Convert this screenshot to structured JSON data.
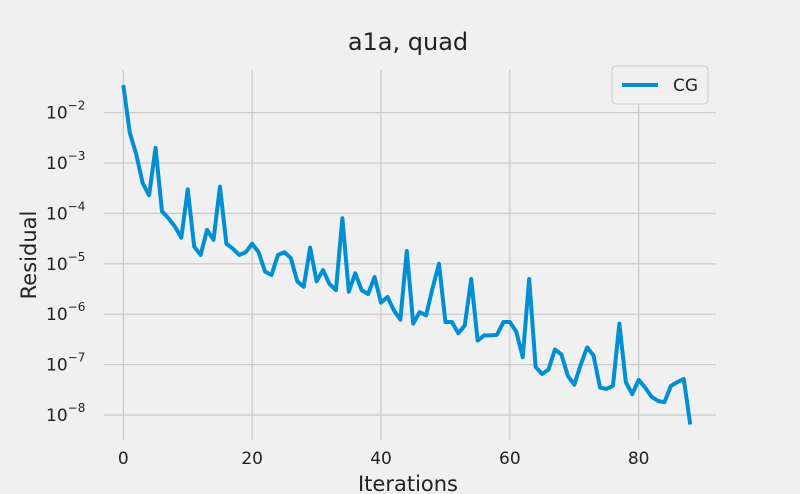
{
  "chart_data": {
    "type": "line",
    "title": "a1a, quad",
    "xlabel": "Iterations",
    "ylabel": "Residual",
    "xlim": [
      -3,
      92
    ],
    "ylim": [
      3.2e-09,
      0.07
    ],
    "y_scale": "log",
    "grid": true,
    "legend_position": "top-right",
    "x_ticks": [
      {
        "value": 0,
        "label": "0"
      },
      {
        "value": 20,
        "label": "20"
      },
      {
        "value": 40,
        "label": "40"
      },
      {
        "value": 60,
        "label": "60"
      },
      {
        "value": 80,
        "label": "80"
      }
    ],
    "y_ticks": [
      {
        "value": 0.01,
        "base": "10",
        "exp": "−2"
      },
      {
        "value": 0.001,
        "base": "10",
        "exp": "−3"
      },
      {
        "value": 0.0001,
        "base": "10",
        "exp": "−4"
      },
      {
        "value": 1e-05,
        "base": "10",
        "exp": "−5"
      },
      {
        "value": 1e-06,
        "base": "10",
        "exp": "−6"
      },
      {
        "value": 1e-07,
        "base": "10",
        "exp": "−7"
      },
      {
        "value": 1e-08,
        "base": "10",
        "exp": "−8"
      }
    ],
    "series": [
      {
        "name": "CG",
        "color": "#008fd5",
        "x": [
          0,
          1,
          2,
          3,
          4,
          5,
          6,
          7,
          8,
          9,
          10,
          11,
          12,
          13,
          14,
          15,
          16,
          17,
          18,
          19,
          20,
          21,
          22,
          23,
          24,
          25,
          26,
          27,
          28,
          29,
          30,
          31,
          32,
          33,
          34,
          35,
          36,
          37,
          38,
          39,
          40,
          41,
          42,
          43,
          44,
          45,
          46,
          47,
          48,
          49,
          50,
          51,
          52,
          53,
          54,
          55,
          56,
          57,
          58,
          59,
          60,
          61,
          62,
          63,
          64,
          65,
          66,
          67,
          68,
          69,
          70,
          71,
          72,
          73,
          74,
          75,
          76,
          77,
          78,
          79,
          80,
          81,
          82,
          83,
          84,
          85,
          86,
          87,
          88
        ],
        "y": [
          0.035,
          0.004,
          0.0015,
          0.0004,
          0.00023,
          0.002,
          0.00011,
          8e-05,
          5.5e-05,
          3.3e-05,
          0.0003,
          2.2e-05,
          1.5e-05,
          4.7e-05,
          3e-05,
          0.00034,
          2.5e-05,
          2e-05,
          1.5e-05,
          1.7e-05,
          2.5e-05,
          1.7e-05,
          7e-06,
          6e-06,
          1.5e-05,
          1.7e-05,
          1.3e-05,
          4.5e-06,
          3.5e-06,
          2.1e-05,
          4.5e-06,
          7.5e-06,
          4e-06,
          3e-06,
          8e-05,
          2.8e-06,
          6.5e-06,
          3e-06,
          2.5e-06,
          5.5e-06,
          1.7e-06,
          2.2e-06,
          1.2e-06,
          7.8e-07,
          1.8e-05,
          6.5e-07,
          1.1e-06,
          9.5e-07,
          3.3e-06,
          1e-05,
          7e-07,
          7e-07,
          4.2e-07,
          6e-07,
          5e-06,
          3e-07,
          3.8e-07,
          3.8e-07,
          3.9e-07,
          7e-07,
          7e-07,
          4.5e-07,
          1.4e-07,
          5e-06,
          9e-08,
          6.5e-08,
          8e-08,
          2e-07,
          1.6e-07,
          6e-08,
          4e-08,
          1e-07,
          2.2e-07,
          1.5e-07,
          3.5e-08,
          3.3e-08,
          3.8e-08,
          6.5e-07,
          4.5e-08,
          2.6e-08,
          5e-08,
          3.5e-08,
          2.3e-08,
          1.9e-08,
          1.8e-08,
          3.8e-08,
          4.5e-08,
          5.2e-08,
          6.5e-09
        ]
      }
    ]
  }
}
